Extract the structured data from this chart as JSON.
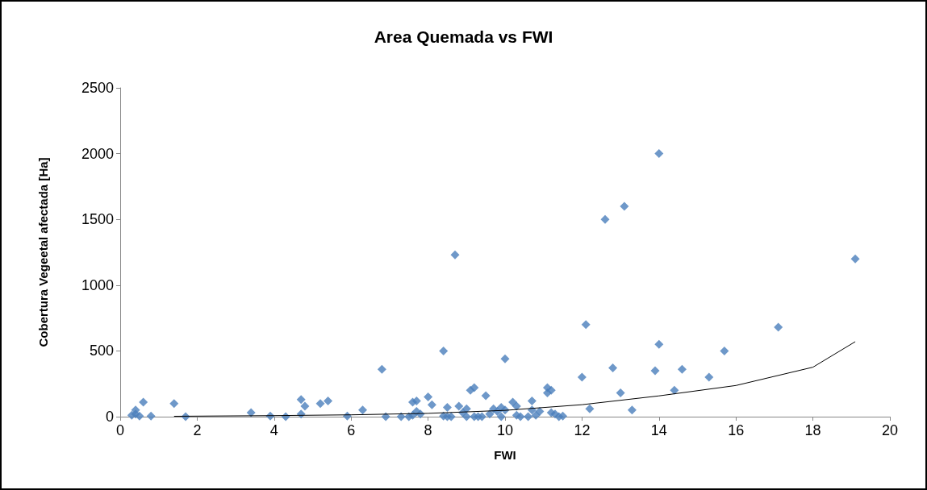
{
  "chart_data": {
    "type": "scatter",
    "title": "Area Quemada vs FWI",
    "xlabel": "FWI",
    "ylabel": "Cobertura Vegeetal afectada [Ha]",
    "xlim": [
      0,
      20
    ],
    "xticks": [
      0,
      2,
      4,
      6,
      8,
      10,
      12,
      14,
      16,
      18,
      20
    ],
    "ylim": [
      0,
      2500
    ],
    "yticks": [
      0,
      500,
      1000,
      1500,
      2000,
      2500
    ],
    "grid": false,
    "marker": "diamond",
    "series": [
      {
        "color": "#4a7ebb",
        "x": [
          0.3,
          0.4,
          0.4,
          0.5,
          0.6,
          0.8,
          1.4,
          1.7,
          3.4,
          3.9,
          4.3,
          4.7,
          4.7,
          4.8,
          5.2,
          5.4,
          5.9,
          6.3,
          6.8,
          6.9,
          7.3,
          7.5,
          7.6,
          7.6,
          7.7,
          7.7,
          7.8,
          8.0,
          8.1,
          8.4,
          8.4,
          8.5,
          8.5,
          8.6,
          8.7,
          8.8,
          8.9,
          9.0,
          9.0,
          9.1,
          9.2,
          9.2,
          9.3,
          9.4,
          9.5,
          9.6,
          9.7,
          9.8,
          9.9,
          9.9,
          10.0,
          10.0,
          10.2,
          10.3,
          10.3,
          10.4,
          10.6,
          10.7,
          10.7,
          10.8,
          10.9,
          11.1,
          11.1,
          11.2,
          11.2,
          11.3,
          11.4,
          11.5,
          12.0,
          12.1,
          12.2,
          12.6,
          12.8,
          13.0,
          13.1,
          13.3,
          13.9,
          14.0,
          14.0,
          14.4,
          14.6,
          15.3,
          15.7,
          17.1,
          19.1
        ],
        "values": [
          10,
          50,
          20,
          5,
          110,
          5,
          100,
          0,
          30,
          5,
          0,
          130,
          20,
          80,
          100,
          120,
          5,
          50,
          360,
          0,
          0,
          0,
          110,
          10,
          120,
          40,
          20,
          150,
          90,
          500,
          5,
          70,
          0,
          0,
          1230,
          80,
          30,
          60,
          0,
          200,
          220,
          0,
          0,
          0,
          160,
          20,
          60,
          40,
          0,
          70,
          440,
          50,
          110,
          80,
          10,
          0,
          0,
          120,
          50,
          10,
          40,
          220,
          180,
          200,
          30,
          20,
          0,
          5,
          300,
          700,
          60,
          1500,
          370,
          180,
          1600,
          50,
          350,
          2000,
          550,
          200,
          360,
          300,
          500,
          680,
          1200
        ]
      },
      {
        "type": "line",
        "color": "#000000",
        "marker": "none",
        "x": [
          1.4,
          4,
          6,
          8,
          10,
          12,
          14,
          16,
          18,
          19.1
        ],
        "values": [
          3,
          8,
          14,
          25,
          48,
          91,
          158,
          237,
          376,
          570
        ]
      }
    ]
  }
}
